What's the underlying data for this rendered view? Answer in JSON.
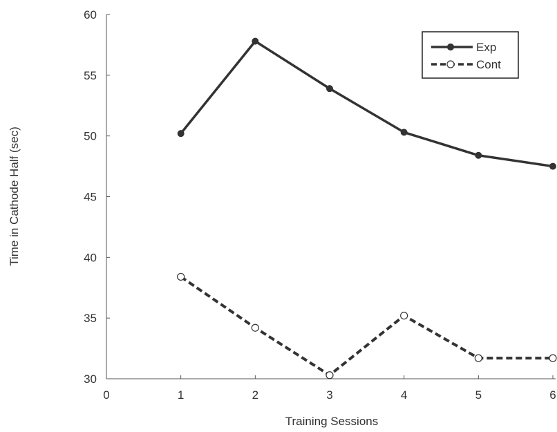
{
  "chart_data": {
    "type": "line",
    "title": "",
    "xlabel": "Training Sessions",
    "ylabel": "Time in Cathode Half (sec)",
    "xlim": [
      0,
      6
    ],
    "ylim": [
      30,
      60
    ],
    "xticks": [
      0,
      1,
      2,
      3,
      4,
      5,
      6
    ],
    "yticks": [
      30,
      35,
      40,
      45,
      50,
      55,
      60
    ],
    "x": [
      1,
      2,
      3,
      4,
      5,
      6
    ],
    "series": [
      {
        "name": "Exp",
        "values": [
          50.2,
          57.8,
          53.9,
          50.3,
          48.4,
          47.5
        ],
        "line_style": "solid",
        "marker": "filled-circle",
        "color": "#333333"
      },
      {
        "name": "Cont",
        "values": [
          38.4,
          34.2,
          30.3,
          35.2,
          31.7,
          31.7
        ],
        "line_style": "dashed",
        "marker": "open-circle",
        "color": "#333333"
      }
    ],
    "legend": {
      "position": "top-right"
    },
    "grid": false
  }
}
